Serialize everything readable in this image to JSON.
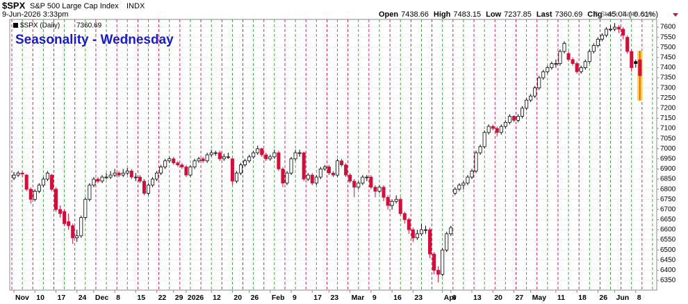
{
  "header": {
    "symbol": "$SPX",
    "name": "S&P 500 Large Cap Index",
    "exchange": "INDX",
    "date": "9-Jun-2026 3:33pm",
    "quote": [
      {
        "label": "Open",
        "value": "7438.66"
      },
      {
        "label": "High",
        "value": "7483.15"
      },
      {
        "label": "Low",
        "value": "7237.85"
      },
      {
        "label": "Last",
        "value": "7360.69"
      },
      {
        "label": "Chg",
        "value": "-45.04 (-0.61%)"
      }
    ],
    "copyright": "© StockCharts.com"
  },
  "chart_data": {
    "type": "candlestick",
    "title": "Seasonality - Wednesday",
    "series": [
      {
        "name": "$SPX (Daily)",
        "last_label": "7360.69",
        "up_color": "#000000",
        "down_color": "#d0103a",
        "highlight_color": "#f5d327",
        "ohlc": [
          [
            6855,
            6885,
            6845,
            6870
          ],
          [
            6870,
            6890,
            6860,
            6880
          ],
          [
            6880,
            6890,
            6860,
            6875
          ],
          [
            6870,
            6875,
            6790,
            6800
          ],
          [
            6800,
            6810,
            6730,
            6750
          ],
          [
            6750,
            6800,
            6740,
            6790
          ],
          [
            6790,
            6830,
            6780,
            6820
          ],
          [
            6820,
            6860,
            6810,
            6850
          ],
          [
            6850,
            6890,
            6840,
            6880
          ],
          [
            6870,
            6875,
            6790,
            6800
          ],
          [
            6800,
            6810,
            6690,
            6700
          ],
          [
            6700,
            6720,
            6660,
            6680
          ],
          [
            6690,
            6700,
            6620,
            6630
          ],
          [
            6640,
            6680,
            6600,
            6620
          ],
          [
            6620,
            6630,
            6530,
            6560
          ],
          [
            6560,
            6600,
            6540,
            6570
          ],
          [
            6570,
            6670,
            6560,
            6660
          ],
          [
            6660,
            6760,
            6650,
            6750
          ],
          [
            6750,
            6830,
            6740,
            6820
          ],
          [
            6820,
            6860,
            6810,
            6850
          ],
          [
            6850,
            6860,
            6830,
            6840
          ],
          [
            6840,
            6870,
            6830,
            6860
          ],
          [
            6860,
            6880,
            6850,
            6860
          ],
          [
            6860,
            6890,
            6850,
            6870
          ],
          [
            6870,
            6900,
            6860,
            6880
          ],
          [
            6880,
            6890,
            6860,
            6870
          ],
          [
            6870,
            6900,
            6860,
            6880
          ],
          [
            6880,
            6905,
            6870,
            6890
          ],
          [
            6890,
            6900,
            6850,
            6860
          ],
          [
            6860,
            6880,
            6840,
            6860
          ],
          [
            6860,
            6870,
            6830,
            6840
          ],
          [
            6840,
            6850,
            6770,
            6780
          ],
          [
            6780,
            6830,
            6770,
            6820
          ],
          [
            6820,
            6860,
            6810,
            6850
          ],
          [
            6850,
            6890,
            6840,
            6880
          ],
          [
            6880,
            6920,
            6870,
            6910
          ],
          [
            6910,
            6950,
            6900,
            6940
          ],
          [
            6940,
            6960,
            6930,
            6950
          ],
          [
            6950,
            6960,
            6920,
            6930
          ],
          [
            6930,
            6940,
            6910,
            6920
          ],
          [
            6920,
            6930,
            6900,
            6910
          ],
          [
            6910,
            6920,
            6860,
            6870
          ],
          [
            6870,
            6920,
            6860,
            6910
          ],
          [
            6910,
            6950,
            6900,
            6940
          ],
          [
            6940,
            6960,
            6930,
            6950
          ],
          [
            6950,
            6960,
            6930,
            6940
          ],
          [
            6940,
            6980,
            6930,
            6970
          ],
          [
            6970,
            6995,
            6960,
            6980
          ],
          [
            6980,
            6990,
            6965,
            6980
          ],
          [
            6980,
            6990,
            6940,
            6950
          ],
          [
            6950,
            6975,
            6940,
            6960
          ],
          [
            6960,
            6980,
            6950,
            6960
          ],
          [
            6950,
            6955,
            6820,
            6840
          ],
          [
            6840,
            6890,
            6830,
            6880
          ],
          [
            6880,
            6930,
            6870,
            6920
          ],
          [
            6920,
            6950,
            6910,
            6940
          ],
          [
            6940,
            6970,
            6930,
            6960
          ],
          [
            6960,
            6990,
            6950,
            6980
          ],
          [
            6980,
            7015,
            6970,
            7000
          ],
          [
            7000,
            7005,
            6960,
            6970
          ],
          [
            6970,
            6980,
            6940,
            6950
          ],
          [
            6950,
            6970,
            6940,
            6960
          ],
          [
            6960,
            6995,
            6950,
            6980
          ],
          [
            6980,
            6990,
            6890,
            6900
          ],
          [
            6900,
            6910,
            6810,
            6830
          ],
          [
            6830,
            6890,
            6820,
            6880
          ],
          [
            6880,
            6960,
            6870,
            6950
          ],
          [
            6950,
            6995,
            6940,
            6980
          ],
          [
            6980,
            6995,
            6960,
            6980
          ],
          [
            6980,
            6985,
            6840,
            6850
          ],
          [
            6850,
            6880,
            6840,
            6870
          ],
          [
            6870,
            6880,
            6820,
            6830
          ],
          [
            6830,
            6870,
            6820,
            6860
          ],
          [
            6860,
            6910,
            6850,
            6900
          ],
          [
            6900,
            6920,
            6890,
            6910
          ],
          [
            6910,
            6920,
            6870,
            6880
          ],
          [
            6880,
            6890,
            6860,
            6870
          ],
          [
            6870,
            6950,
            6860,
            6940
          ],
          [
            6940,
            6950,
            6910,
            6920
          ],
          [
            6920,
            6930,
            6860,
            6870
          ],
          [
            6870,
            6880,
            6830,
            6840
          ],
          [
            6840,
            6850,
            6760,
            6810
          ],
          [
            6810,
            6840,
            6800,
            6830
          ],
          [
            6830,
            6870,
            6820,
            6860
          ],
          [
            6860,
            6870,
            6840,
            6860
          ],
          [
            6860,
            6870,
            6800,
            6810
          ],
          [
            6810,
            6820,
            6760,
            6790
          ],
          [
            6790,
            6820,
            6780,
            6810
          ],
          [
            6810,
            6820,
            6740,
            6760
          ],
          [
            6760,
            6770,
            6700,
            6720
          ],
          [
            6720,
            6750,
            6700,
            6740
          ],
          [
            6740,
            6770,
            6730,
            6750
          ],
          [
            6750,
            6760,
            6670,
            6680
          ],
          [
            6680,
            6690,
            6630,
            6650
          ],
          [
            6650,
            6660,
            6580,
            6600
          ],
          [
            6600,
            6610,
            6540,
            6560
          ],
          [
            6560,
            6600,
            6550,
            6580
          ],
          [
            6580,
            6630,
            6570,
            6600
          ],
          [
            6600,
            6620,
            6580,
            6600
          ],
          [
            6600,
            6610,
            6460,
            6480
          ],
          [
            6480,
            6490,
            6380,
            6400
          ],
          [
            6400,
            6420,
            6340,
            6380
          ],
          [
            6380,
            6510,
            6370,
            6500
          ],
          [
            6500,
            6590,
            6490,
            6580
          ],
          [
            6580,
            6620,
            6570,
            6610
          ],
          [
            6780,
            6810,
            6770,
            6800
          ],
          [
            6800,
            6830,
            6790,
            6820
          ],
          [
            6820,
            6840,
            6800,
            6830
          ],
          [
            6830,
            6870,
            6820,
            6860
          ],
          [
            6860,
            6900,
            6850,
            6890
          ],
          [
            6890,
            6990,
            6880,
            6980
          ],
          [
            6980,
            7020,
            6970,
            7010
          ],
          [
            7010,
            7090,
            7000,
            7080
          ],
          [
            7080,
            7120,
            7070,
            7110
          ],
          [
            7110,
            7120,
            7090,
            7100
          ],
          [
            7100,
            7110,
            7060,
            7080
          ],
          [
            7080,
            7120,
            7070,
            7110
          ],
          [
            7110,
            7140,
            7100,
            7130
          ],
          [
            7130,
            7170,
            7120,
            7160
          ],
          [
            7160,
            7165,
            7130,
            7140
          ],
          [
            7140,
            7170,
            7130,
            7160
          ],
          [
            7160,
            7210,
            7150,
            7200
          ],
          [
            7200,
            7250,
            7190,
            7240
          ],
          [
            7240,
            7270,
            7230,
            7260
          ],
          [
            7260,
            7310,
            7250,
            7300
          ],
          [
            7300,
            7360,
            7290,
            7350
          ],
          [
            7350,
            7390,
            7340,
            7380
          ],
          [
            7380,
            7410,
            7370,
            7400
          ],
          [
            7400,
            7430,
            7390,
            7420
          ],
          [
            7420,
            7440,
            7400,
            7420
          ],
          [
            7420,
            7490,
            7410,
            7480
          ],
          [
            7480,
            7530,
            7470,
            7520
          ],
          [
            7470,
            7480,
            7430,
            7440
          ],
          [
            7440,
            7450,
            7410,
            7420
          ],
          [
            7420,
            7430,
            7370,
            7380
          ],
          [
            7380,
            7410,
            7370,
            7400
          ],
          [
            7400,
            7440,
            7390,
            7430
          ],
          [
            7430,
            7490,
            7420,
            7480
          ],
          [
            7480,
            7520,
            7470,
            7510
          ],
          [
            7510,
            7550,
            7500,
            7540
          ],
          [
            7540,
            7570,
            7530,
            7560
          ],
          [
            7560,
            7600,
            7550,
            7590
          ],
          [
            7590,
            7610,
            7580,
            7590
          ],
          [
            7590,
            7620,
            7580,
            7600
          ],
          [
            7600,
            7610,
            7570,
            7590
          ],
          [
            7590,
            7600,
            7540,
            7560
          ],
          [
            7550,
            7560,
            7470,
            7480
          ],
          [
            7480,
            7490,
            7380,
            7400
          ],
          [
            7430,
            7440,
            7400,
            7420
          ],
          [
            7438.66,
            7483.15,
            7237.85,
            7360.69
          ]
        ]
      }
    ],
    "xlim": [
      -1,
      153
    ],
    "xticks": [
      {
        "value": 0,
        "label": "Nov"
      },
      {
        "value": 5,
        "label": "10"
      },
      {
        "value": 10,
        "label": "17"
      },
      {
        "value": 15,
        "label": "24"
      },
      {
        "value": 19,
        "label": "Dec"
      },
      {
        "value": 24,
        "label": "8"
      },
      {
        "value": 29,
        "label": "15"
      },
      {
        "value": 34,
        "label": "22"
      },
      {
        "value": 38,
        "label": "29"
      },
      {
        "value": 41,
        "label": "2026"
      },
      {
        "value": 47,
        "label": "12"
      },
      {
        "value": 52,
        "label": "20"
      },
      {
        "value": 56,
        "label": "26"
      },
      {
        "value": 61,
        "label": "Feb"
      },
      {
        "value": 66,
        "label": "9"
      },
      {
        "value": 71,
        "label": "17"
      },
      {
        "value": 75,
        "label": "23"
      },
      {
        "value": 80,
        "label": "Mar"
      },
      {
        "value": 85,
        "label": "9"
      },
      {
        "value": 90,
        "label": "16"
      },
      {
        "value": 95,
        "label": "23"
      },
      {
        "value": 102,
        "label": "Apr"
      },
      {
        "value": 104,
        "label": "6"
      },
      {
        "value": 109,
        "label": "13"
      },
      {
        "value": 114,
        "label": "20"
      },
      {
        "value": 119,
        "label": "27"
      },
      {
        "value": 123,
        "label": "May"
      },
      {
        "value": 129,
        "label": "11"
      },
      {
        "value": 134,
        "label": "18"
      },
      {
        "value": 139,
        "label": "26"
      },
      {
        "value": 143,
        "label": "Jun"
      },
      {
        "value": 148,
        "label": "8"
      }
    ],
    "ylim": [
      6302,
      7638
    ],
    "yticks": [
      6350,
      6400,
      6450,
      6500,
      6550,
      6600,
      6650,
      6700,
      6750,
      6800,
      6850,
      6900,
      6950,
      7000,
      7050,
      7100,
      7150,
      7200,
      7250,
      7300,
      7350,
      7400,
      7450,
      7500,
      7550,
      7600
    ],
    "grid": true
  }
}
